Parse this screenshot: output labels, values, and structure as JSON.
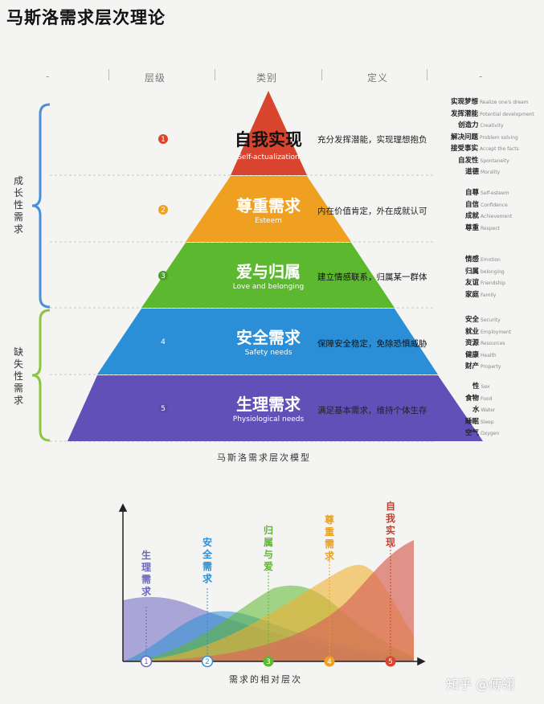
{
  "title": "马斯洛需求层次理论",
  "header": {
    "dash_left": "-",
    "level": "层级",
    "category": "类别",
    "definition": "定义",
    "dash_right": "-"
  },
  "braces": {
    "growth": {
      "label": "成长性需求",
      "color": "#4a90d9"
    },
    "deficiency": {
      "label": "缺失性需求",
      "color": "#8cc63f"
    }
  },
  "layers": [
    {
      "zh": "自我实现",
      "en": "Self-actualization",
      "num": "1",
      "color": "#d9442e",
      "def": "充分发挥潜能，实现理想抱负",
      "traits": [
        {
          "zh": "实现梦想",
          "en": "Realize one's dream"
        },
        {
          "zh": "发挥潜能",
          "en": "Potential development"
        },
        {
          "zh": "创造力",
          "en": "Creativity"
        },
        {
          "zh": "解决问题",
          "en": "Problem solving"
        },
        {
          "zh": "接受事实",
          "en": "Accept the facts"
        },
        {
          "zh": "自发性",
          "en": "Spontaneity"
        },
        {
          "zh": "道德",
          "en": "Morality"
        }
      ]
    },
    {
      "zh": "尊重需求",
      "en": "Esteem",
      "num": "2",
      "color": "#f0a020",
      "def": "内在价值肯定，外在成就认可",
      "traits": [
        {
          "zh": "自尊",
          "en": "Self-esteem"
        },
        {
          "zh": "自信",
          "en": "Confidence"
        },
        {
          "zh": "成就",
          "en": "Achievement"
        },
        {
          "zh": "尊重",
          "en": "Respect"
        }
      ]
    },
    {
      "zh": "爱与归属",
      "en": "Love and belonging",
      "num": "3",
      "color": "#5cb82e",
      "def": "建立情感联系，归属某一群体",
      "traits": [
        {
          "zh": "情感",
          "en": "Emotion"
        },
        {
          "zh": "归属",
          "en": "belonging"
        },
        {
          "zh": "友谊",
          "en": "Friendship"
        },
        {
          "zh": "家庭",
          "en": "Family"
        }
      ]
    },
    {
      "zh": "安全需求",
      "en": "Safety needs",
      "num": "4",
      "color": "#2a8fd6",
      "def": "保障安全稳定，免除恐惧威胁",
      "traits": [
        {
          "zh": "安全",
          "en": "Security"
        },
        {
          "zh": "就业",
          "en": "Employment"
        },
        {
          "zh": "资源",
          "en": "Resources"
        },
        {
          "zh": "健康",
          "en": "Health"
        },
        {
          "zh": "财产",
          "en": "Property"
        }
      ]
    },
    {
      "zh": "生理需求",
      "en": "Physiological needs",
      "num": "5",
      "color": "#6050b8",
      "def": "满足基本需求，维持个体生存",
      "traits": [
        {
          "zh": "性",
          "en": "Sex"
        },
        {
          "zh": "食物",
          "en": "Food"
        },
        {
          "zh": "水",
          "en": "Water"
        },
        {
          "zh": "睡眠",
          "en": "Sleep"
        },
        {
          "zh": "空气",
          "en": "Oxygen"
        }
      ]
    }
  ],
  "pyramid_caption": "马斯洛需求层次模型",
  "wave_chart": {
    "x_caption": "需求的相对层次",
    "labels": [
      {
        "text": "生理需求",
        "color": "#6b66c0"
      },
      {
        "text": "安全需求",
        "color": "#2a8fd6"
      },
      {
        "text": "归属与爱",
        "color": "#5cb82e"
      },
      {
        "text": "尊重需求",
        "color": "#e8a020"
      },
      {
        "text": "自我实现",
        "color": "#c84030"
      }
    ],
    "markers": [
      "1",
      "2",
      "3",
      "4",
      "5"
    ]
  },
  "watermark": "知乎 @傅翎"
}
